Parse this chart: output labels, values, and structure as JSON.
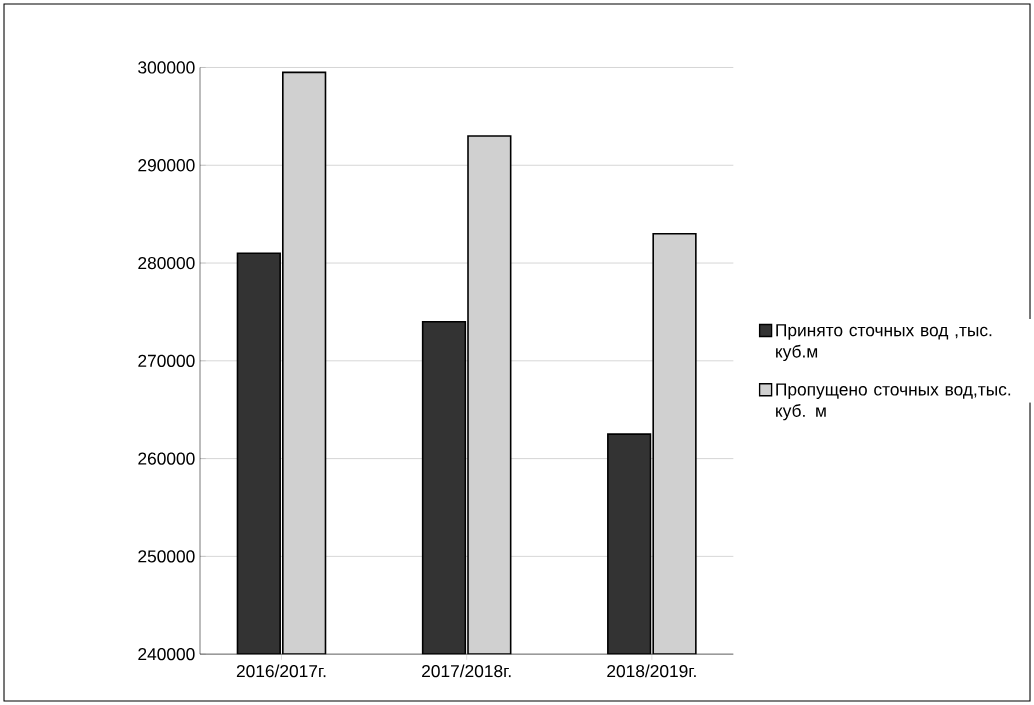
{
  "chart_data": {
    "type": "bar",
    "categories": [
      "2016/2017г.",
      "2017/2018г.",
      "2018/2019г."
    ],
    "series": [
      {
        "name": "Принято сточных вод ,тыс. куб.м",
        "color": "#333333",
        "values": [
          281000,
          274000,
          262500
        ]
      },
      {
        "name": "Пропущено сточных вод,тыс. куб. м",
        "color": "#d0d0d0",
        "values": [
          299500,
          293000,
          283000
        ]
      }
    ],
    "ylim": [
      240000,
      300000
    ],
    "yticks": [
      240000,
      250000,
      260000,
      270000,
      280000,
      290000,
      300000
    ],
    "grid": "y",
    "legend": "right"
  }
}
